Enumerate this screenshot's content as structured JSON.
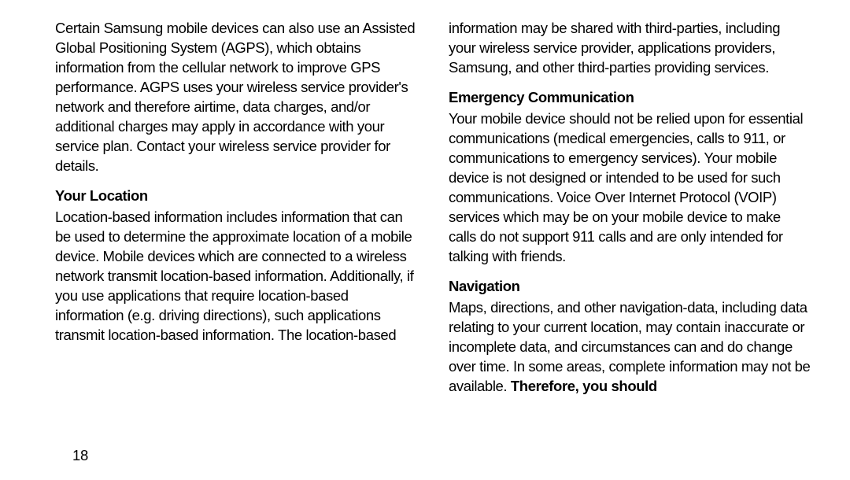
{
  "page": {
    "number": "18",
    "background_color": "#ffffff",
    "text_color": "#000000",
    "font_size_pt": 14,
    "heading_weight": 900,
    "body_weight": 400
  },
  "left": {
    "para1": "Certain Samsung mobile devices can also use an Assisted Global Positioning System (AGPS), which obtains information from the cellular network to improve GPS performance. AGPS uses your wireless service provider's network and therefore airtime, data charges, and/or additional charges may apply in accordance with your service plan. Contact your wireless service provider for details.",
    "heading1": "Your Location",
    "para2": "Location-based information includes information that can be used to determine the approximate location of a mobile device. Mobile devices which are connected to a wireless network transmit location-based information. Additionally, if you use applications that require location-based information (e.g. driving directions), such applications transmit location-based information. The location-based"
  },
  "right": {
    "para1": "information may be shared with third-parties, including your wireless service provider, applications providers, Samsung, and other third-parties providing services.",
    "heading1": "Emergency Communication",
    "para2": "Your mobile device should not be relied upon for essential communications (medical emergencies, calls to 911, or communications to emergency services). Your mobile device is not designed or intended to be used for such communications. Voice Over Internet Protocol (VOIP) services which may be on your mobile device to make calls do not support 911 calls and are only intended for talking with friends.",
    "heading2": "Navigation",
    "para3_a": "Maps, directions, and other navigation-data, including data relating to your current location, may contain inaccurate or incomplete data, and circumstances can and do change over time. In some areas, complete information may not be available. ",
    "para3_b": "Therefore, you should"
  }
}
